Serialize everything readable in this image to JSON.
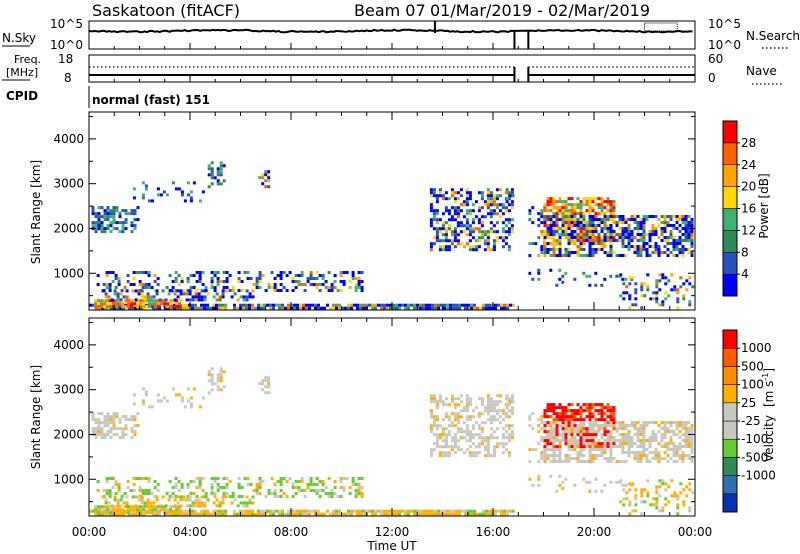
{
  "header": {
    "station": "Saskatoon (fitACF)",
    "beam": "Beam 07",
    "date_range": "01/Mar/2019 - 02/Mar/2019"
  },
  "noise_panel": {
    "left_label": "N.Sky",
    "left_ticks": [
      "10^5",
      "10^0"
    ],
    "right_label": "N.Search",
    "right_ticks": [
      "10^5",
      "10^0"
    ]
  },
  "freq_panel": {
    "left_label_1": "Freq.",
    "left_label_2": "[MHz]",
    "left_ticks": [
      "18",
      "8"
    ],
    "right_label": "Nave",
    "right_ticks": [
      "60",
      "0"
    ]
  },
  "cpid": {
    "label": "CPID",
    "value": "normal (fast) 151"
  },
  "colors": {
    "power": [
      "#0000ff",
      "#2a52be",
      "#2e8b57",
      "#3cb371",
      "#ffd700",
      "#ffa500",
      "#ff6000",
      "#ff0000"
    ],
    "velocity": [
      "#ff0000",
      "#ff5a00",
      "#ff8c00",
      "#ffb000",
      "#c8c8c0",
      "#c8c8c0",
      "#66cc33",
      "#2e8b57",
      "#2f6fb0",
      "#0a2fb0"
    ]
  },
  "chart_data": [
    {
      "type": "heatmap",
      "name": "power",
      "ylabel": "Slant Range [km]",
      "yticks": [
        "4000",
        "3000",
        "2000",
        "1000"
      ],
      "ylim": [
        180,
        4600
      ],
      "colorbar_label": "Power [dB]",
      "colorbar_ticks": [
        "28",
        "24",
        "20",
        "16",
        "12",
        "8",
        "4"
      ]
    },
    {
      "type": "heatmap",
      "name": "velocity",
      "ylabel": "Slant Range [km]",
      "yticks": [
        "4000",
        "3000",
        "2000",
        "1000"
      ],
      "ylim": [
        180,
        4600
      ],
      "colorbar_label_main": "Velocity",
      "colorbar_label_unit": "[m s",
      "colorbar_label_exp": "-1",
      "colorbar_label_close": "]",
      "colorbar_ticks": [
        "1000",
        "500",
        "100",
        "25",
        "-25",
        "-100",
        "-500",
        "-1000"
      ]
    }
  ],
  "x_axis": {
    "label": "Time UT",
    "ticks": [
      "00:00",
      "04:00",
      "08:00",
      "12:00",
      "16:00",
      "20:00",
      "00:00"
    ]
  }
}
